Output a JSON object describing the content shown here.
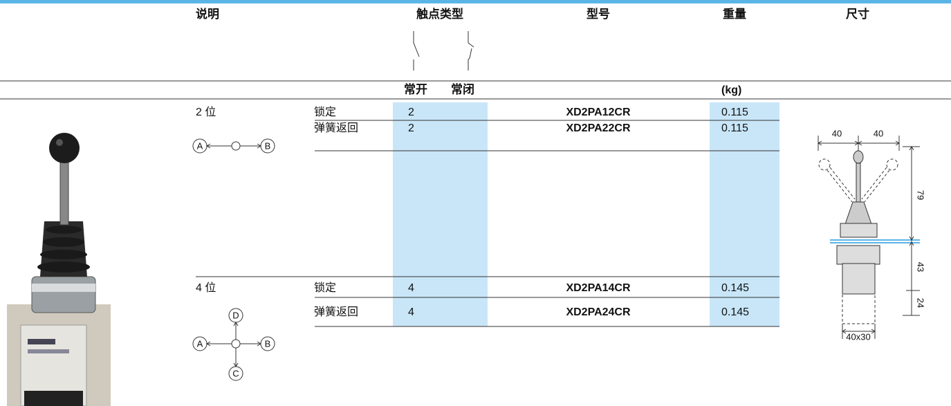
{
  "header": {
    "columns": [
      "说明",
      "触点类型",
      "型号",
      "重量",
      "尺寸"
    ],
    "contact_types": [
      "常开",
      "常闭"
    ],
    "weight_unit": "(kg)"
  },
  "groups": [
    {
      "position": "2 位",
      "diagram": [
        "A",
        "B"
      ],
      "rows": [
        {
          "action": "锁定",
          "contacts": "2",
          "model": "XD2PA12CR",
          "weight": "0.115"
        },
        {
          "action": "弹簧返回",
          "contacts": "2",
          "model": "XD2PA22CR",
          "weight": "0.115"
        }
      ]
    },
    {
      "position": "4 位",
      "diagram": [
        "D",
        "A",
        "B",
        "C"
      ],
      "rows": [
        {
          "action": "锁定",
          "contacts": "4",
          "model": "XD2PA14CR",
          "weight": "0.145"
        },
        {
          "action": "弹簧返回",
          "contacts": "4",
          "model": "XD2PA24CR",
          "weight": "0.145"
        }
      ]
    }
  ],
  "dimensions": {
    "labels": [
      "40",
      "40",
      "79",
      "43",
      "24",
      "40x30"
    ]
  }
}
